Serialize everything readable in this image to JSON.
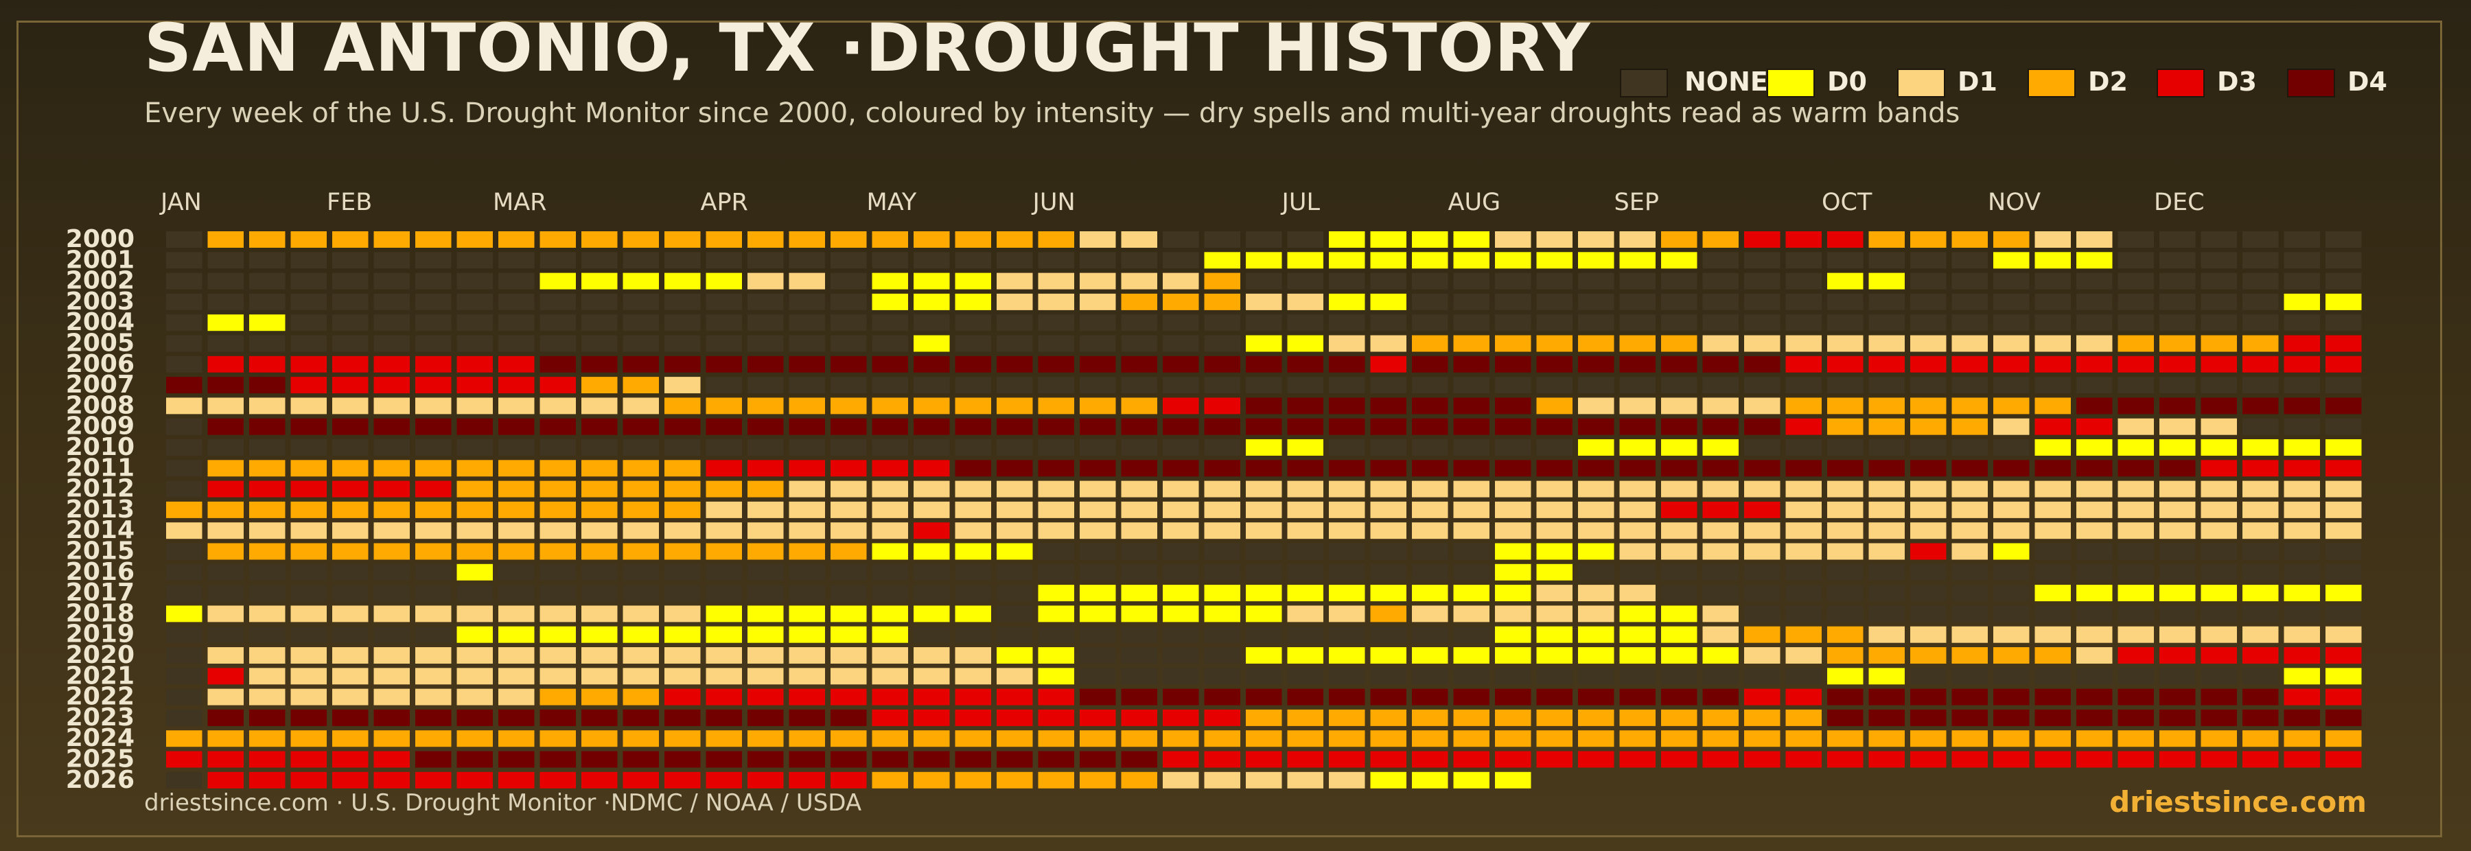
{
  "header": {
    "title": "SAN ANTONIO, TX ·DROUGHT HISTORY",
    "subtitle": "Every week of the U.S. Drought Monitor since 2000, coloured by intensity — dry spells and multi-year droughts read as warm bands"
  },
  "legend": [
    {
      "label": "NONE",
      "color": "#3f3520"
    },
    {
      "label": "D0",
      "color": "#ffff00"
    },
    {
      "label": "D1",
      "color": "#fcd37f"
    },
    {
      "label": "D2",
      "color": "#ffaa00"
    },
    {
      "label": "D3",
      "color": "#e60000"
    },
    {
      "label": "D4",
      "color": "#730000"
    }
  ],
  "footer": {
    "source": "driestsince.com  · U.S. Drought Monitor ·NDMC / NOAA / USDA",
    "brand": "driestsince.com"
  },
  "chart_data": {
    "type": "heatmap",
    "x_label_months": [
      "JAN",
      "FEB",
      "MAR",
      "APR",
      "MAY",
      "JUN",
      "JUL",
      "AUG",
      "SEP",
      "OCT",
      "NOV",
      "DEC"
    ],
    "month_start_weeks": [
      0,
      4,
      8,
      13,
      17,
      21,
      27,
      31,
      35,
      40,
      44,
      48
    ],
    "weeks_per_year": 53,
    "years": [
      "2000",
      "2001",
      "2002",
      "2003",
      "2004",
      "2005",
      "2006",
      "2007",
      "2008",
      "2009",
      "2010",
      "2011",
      "2012",
      "2013",
      "2014",
      "2015",
      "2016",
      "2017",
      "2018",
      "2019",
      "2020",
      "2021",
      "2022",
      "2023",
      "2024",
      "2025",
      "2026"
    ],
    "runs_format": "per-year list of [start_week, end_week, level]; level -1 = no data, 0 = NONE, 1 = D0, 2 = D1, 3 = D2, 4 = D3, 5 = D4",
    "runs": [
      [
        [
          0,
          0,
          0
        ],
        [
          1,
          21,
          3
        ],
        [
          22,
          23,
          2
        ],
        [
          24,
          27,
          0
        ],
        [
          28,
          31,
          1
        ],
        [
          32,
          35,
          2
        ],
        [
          36,
          37,
          3
        ],
        [
          38,
          40,
          4
        ],
        [
          41,
          44,
          3
        ],
        [
          45,
          46,
          2
        ],
        [
          47,
          52,
          0
        ]
      ],
      [
        [
          0,
          24,
          0
        ],
        [
          25,
          26,
          1
        ],
        [
          27,
          36,
          1
        ],
        [
          37,
          43,
          0
        ],
        [
          44,
          46,
          1
        ],
        [
          47,
          52,
          0
        ]
      ],
      [
        [
          0,
          8,
          0
        ],
        [
          9,
          13,
          1
        ],
        [
          14,
          15,
          2
        ],
        [
          16,
          16,
          0
        ],
        [
          17,
          19,
          1
        ],
        [
          20,
          24,
          2
        ],
        [
          25,
          25,
          3
        ],
        [
          26,
          39,
          0
        ],
        [
          40,
          41,
          1
        ],
        [
          42,
          52,
          0
        ]
      ],
      [
        [
          0,
          16,
          0
        ],
        [
          17,
          19,
          1
        ],
        [
          20,
          22,
          2
        ],
        [
          23,
          25,
          3
        ],
        [
          26,
          27,
          2
        ],
        [
          28,
          29,
          1
        ],
        [
          30,
          50,
          0
        ],
        [
          51,
          52,
          1
        ]
      ],
      [
        [
          0,
          0,
          0
        ],
        [
          1,
          2,
          1
        ],
        [
          3,
          52,
          0
        ]
      ],
      [
        [
          0,
          17,
          0
        ],
        [
          18,
          18,
          1
        ],
        [
          19,
          25,
          0
        ],
        [
          26,
          27,
          1
        ],
        [
          28,
          29,
          2
        ],
        [
          30,
          36,
          3
        ],
        [
          37,
          46,
          2
        ],
        [
          47,
          50,
          3
        ],
        [
          51,
          52,
          4
        ]
      ],
      [
        [
          0,
          0,
          0
        ],
        [
          1,
          8,
          4
        ],
        [
          9,
          28,
          5
        ],
        [
          29,
          29,
          4
        ],
        [
          30,
          38,
          5
        ],
        [
          39,
          52,
          4
        ]
      ],
      [
        [
          0,
          2,
          5
        ],
        [
          3,
          9,
          4
        ],
        [
          10,
          11,
          3
        ],
        [
          12,
          12,
          2
        ],
        [
          13,
          52,
          0
        ]
      ],
      [
        [
          0,
          3,
          2
        ],
        [
          4,
          11,
          2
        ],
        [
          12,
          23,
          3
        ],
        [
          24,
          25,
          4
        ],
        [
          26,
          32,
          5
        ],
        [
          33,
          33,
          3
        ],
        [
          34,
          38,
          2
        ],
        [
          39,
          45,
          3
        ],
        [
          46,
          52,
          5
        ]
      ],
      [
        [
          0,
          0,
          0
        ],
        [
          1,
          38,
          5
        ],
        [
          39,
          39,
          4
        ],
        [
          40,
          43,
          3
        ],
        [
          44,
          44,
          2
        ],
        [
          45,
          46,
          4
        ],
        [
          47,
          49,
          2
        ],
        [
          50,
          52,
          0
        ]
      ],
      [
        [
          0,
          25,
          0
        ],
        [
          26,
          27,
          1
        ],
        [
          28,
          33,
          0
        ],
        [
          34,
          37,
          1
        ],
        [
          38,
          44,
          0
        ],
        [
          45,
          52,
          1
        ]
      ],
      [
        [
          0,
          0,
          0
        ],
        [
          1,
          12,
          3
        ],
        [
          13,
          18,
          4
        ],
        [
          19,
          48,
          5
        ],
        [
          49,
          52,
          4
        ]
      ],
      [
        [
          0,
          0,
          0
        ],
        [
          1,
          6,
          4
        ],
        [
          7,
          14,
          3
        ],
        [
          15,
          22,
          2
        ],
        [
          23,
          52,
          2
        ]
      ],
      [
        [
          0,
          12,
          3
        ],
        [
          13,
          35,
          2
        ],
        [
          36,
          38,
          4
        ],
        [
          39,
          52,
          2
        ]
      ],
      [
        [
          0,
          17,
          2
        ],
        [
          18,
          18,
          4
        ],
        [
          19,
          52,
          2
        ]
      ],
      [
        [
          0,
          0,
          0
        ],
        [
          1,
          16,
          3
        ],
        [
          17,
          20,
          1
        ],
        [
          21,
          31,
          0
        ],
        [
          32,
          34,
          1
        ],
        [
          35,
          41,
          2
        ],
        [
          42,
          42,
          4
        ],
        [
          43,
          43,
          2
        ],
        [
          44,
          44,
          1
        ],
        [
          45,
          52,
          0
        ]
      ],
      [
        [
          0,
          6,
          0
        ],
        [
          7,
          7,
          1
        ],
        [
          8,
          31,
          0
        ],
        [
          32,
          33,
          1
        ],
        [
          34,
          52,
          0
        ]
      ],
      [
        [
          0,
          20,
          0
        ],
        [
          21,
          32,
          1
        ],
        [
          33,
          35,
          2
        ],
        [
          36,
          44,
          0
        ],
        [
          45,
          52,
          1
        ]
      ],
      [
        [
          0,
          0,
          1
        ],
        [
          1,
          12,
          2
        ],
        [
          13,
          19,
          1
        ],
        [
          20,
          20,
          0
        ],
        [
          21,
          26,
          1
        ],
        [
          27,
          28,
          2
        ],
        [
          29,
          29,
          3
        ],
        [
          30,
          34,
          2
        ],
        [
          35,
          36,
          1
        ],
        [
          37,
          37,
          2
        ],
        [
          38,
          52,
          0
        ]
      ],
      [
        [
          0,
          6,
          0
        ],
        [
          7,
          17,
          1
        ],
        [
          18,
          31,
          0
        ],
        [
          32,
          36,
          1
        ],
        [
          37,
          37,
          2
        ],
        [
          38,
          40,
          3
        ],
        [
          41,
          52,
          2
        ]
      ],
      [
        [
          0,
          0,
          0
        ],
        [
          1,
          19,
          2
        ],
        [
          20,
          21,
          1
        ],
        [
          22,
          25,
          0
        ],
        [
          26,
          37,
          1
        ],
        [
          38,
          39,
          2
        ],
        [
          40,
          45,
          3
        ],
        [
          46,
          46,
          2
        ],
        [
          47,
          52,
          4
        ]
      ],
      [
        [
          0,
          0,
          0
        ],
        [
          1,
          1,
          4
        ],
        [
          2,
          20,
          2
        ],
        [
          21,
          21,
          1
        ],
        [
          22,
          39,
          0
        ],
        [
          40,
          41,
          1
        ],
        [
          42,
          50,
          0
        ],
        [
          51,
          52,
          1
        ]
      ],
      [
        [
          0,
          0,
          0
        ],
        [
          1,
          8,
          2
        ],
        [
          9,
          11,
          3
        ],
        [
          12,
          21,
          4
        ],
        [
          22,
          37,
          5
        ],
        [
          38,
          39,
          4
        ],
        [
          40,
          50,
          5
        ],
        [
          51,
          52,
          4
        ]
      ],
      [
        [
          0,
          0,
          0
        ],
        [
          1,
          16,
          5
        ],
        [
          17,
          25,
          4
        ],
        [
          26,
          39,
          3
        ],
        [
          40,
          52,
          5
        ]
      ],
      [
        [
          0,
          52,
          3
        ]
      ],
      [
        [
          0,
          5,
          4
        ],
        [
          6,
          23,
          5
        ],
        [
          24,
          52,
          4
        ]
      ],
      [
        [
          0,
          0,
          0
        ],
        [
          1,
          16,
          4
        ],
        [
          17,
          23,
          3
        ],
        [
          24,
          28,
          2
        ],
        [
          29,
          32,
          1
        ],
        [
          33,
          52,
          -1
        ]
      ]
    ]
  }
}
